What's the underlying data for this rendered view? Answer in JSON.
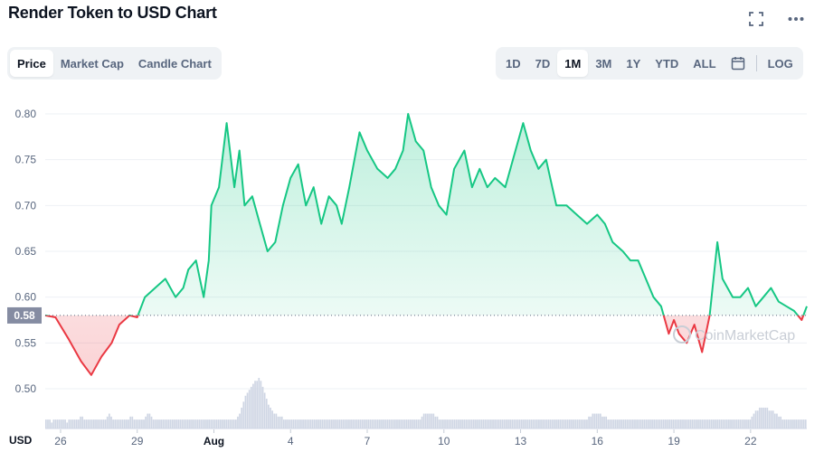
{
  "title": "Render Token to USD Chart",
  "top_icons": [
    "fullscreen-icon",
    "more-icon"
  ],
  "chart_types": [
    {
      "label": "Price",
      "active": true
    },
    {
      "label": "Market Cap",
      "active": false
    },
    {
      "label": "Candle Chart",
      "active": false
    }
  ],
  "ranges": [
    {
      "label": "1D",
      "active": false
    },
    {
      "label": "7D",
      "active": false
    },
    {
      "label": "1M",
      "active": true
    },
    {
      "label": "3M",
      "active": false
    },
    {
      "label": "1Y",
      "active": false
    },
    {
      "label": "YTD",
      "active": false
    },
    {
      "label": "ALL",
      "active": false
    }
  ],
  "calendar_icon": "calendar-icon",
  "log_label": "LOG",
  "watermark": "CoinMarketCap",
  "colors": {
    "up": "#16c784",
    "down": "#ea3943",
    "volume": "#cfd6e4",
    "grid": "#eef0f4",
    "baseline_tag": "#858ca2"
  },
  "chart_data": {
    "type": "area",
    "title": "",
    "xlabel": "",
    "ylabel": "",
    "currency_label": "USD",
    "baseline_label": "0.58",
    "baseline": 0.58,
    "ylim": [
      0.47,
      0.82
    ],
    "y_ticks": [
      "0.80",
      "0.75",
      "0.70",
      "0.65",
      "0.60",
      "0.55",
      "0.50"
    ],
    "x_ticks": [
      {
        "label": "26",
        "day": 26,
        "bold": false
      },
      {
        "label": "29",
        "day": 29,
        "bold": false
      },
      {
        "label": "Aug",
        "day": 32,
        "bold": true
      },
      {
        "label": "4",
        "day": 35,
        "bold": false
      },
      {
        "label": "7",
        "day": 38,
        "bold": false
      },
      {
        "label": "10",
        "day": 41,
        "bold": false
      },
      {
        "label": "13",
        "day": 44,
        "bold": false
      },
      {
        "label": "16",
        "day": 47,
        "bold": false
      },
      {
        "label": "19",
        "day": 50,
        "bold": false
      },
      {
        "label": "22",
        "day": 53,
        "bold": false
      }
    ],
    "x_domain": [
      25.4,
      55.2
    ],
    "series": [
      {
        "x": [
          25.4,
          25.8,
          26.3,
          26.8,
          27.2,
          27.6,
          28.0,
          28.3,
          28.7,
          29.0,
          29.3,
          29.7,
          30.1,
          30.5,
          30.8,
          31.0,
          31.3,
          31.6,
          31.8,
          31.9,
          32.2,
          32.5,
          32.8,
          33.0,
          33.2,
          33.5,
          33.8,
          34.1,
          34.4,
          34.7,
          35.0,
          35.3,
          35.6,
          35.9,
          36.2,
          36.5,
          36.8,
          37.0,
          37.3,
          37.7,
          38.0,
          38.4,
          38.8,
          39.1,
          39.4,
          39.6,
          39.9,
          40.2,
          40.5,
          40.8,
          41.1,
          41.4,
          41.8,
          42.1,
          42.4,
          42.7,
          43.0,
          43.4,
          43.8,
          44.1,
          44.4,
          44.7,
          45.0,
          45.4,
          45.8,
          46.2,
          46.6,
          47.0,
          47.3,
          47.6,
          48.0,
          48.3,
          48.6,
          48.9,
          49.2,
          49.5,
          49.8,
          50.0,
          50.2,
          50.5,
          50.8,
          51.1,
          51.4,
          51.7,
          51.9,
          52.1,
          52.3,
          52.6,
          52.9,
          53.2,
          53.5,
          53.8,
          54.1,
          54.4,
          54.7,
          55.0,
          55.2
        ],
        "values": [
          0.58,
          0.578,
          0.555,
          0.53,
          0.515,
          0.535,
          0.55,
          0.57,
          0.58,
          0.578,
          0.6,
          0.61,
          0.62,
          0.6,
          0.61,
          0.63,
          0.64,
          0.6,
          0.64,
          0.7,
          0.72,
          0.79,
          0.72,
          0.76,
          0.7,
          0.71,
          0.68,
          0.65,
          0.66,
          0.7,
          0.73,
          0.745,
          0.7,
          0.72,
          0.68,
          0.71,
          0.7,
          0.68,
          0.72,
          0.78,
          0.76,
          0.74,
          0.73,
          0.74,
          0.76,
          0.8,
          0.77,
          0.76,
          0.72,
          0.7,
          0.69,
          0.74,
          0.76,
          0.72,
          0.74,
          0.72,
          0.73,
          0.72,
          0.76,
          0.79,
          0.76,
          0.74,
          0.75,
          0.7,
          0.7,
          0.69,
          0.68,
          0.69,
          0.68,
          0.66,
          0.65,
          0.64,
          0.64,
          0.62,
          0.6,
          0.59,
          0.56,
          0.575,
          0.56,
          0.55,
          0.57,
          0.54,
          0.58,
          0.66,
          0.62,
          0.61,
          0.6,
          0.6,
          0.61,
          0.59,
          0.6,
          0.61,
          0.595,
          0.59,
          0.585,
          0.575,
          0.59
        ]
      }
    ],
    "volume": [
      3,
      3,
      3,
      2,
      3,
      3,
      3,
      3,
      3,
      3,
      3,
      2,
      3,
      3,
      3,
      3,
      3,
      3,
      4,
      4,
      3,
      3,
      3,
      3,
      3,
      3,
      3,
      3,
      3,
      3,
      3,
      3,
      4,
      5,
      4,
      3,
      3,
      3,
      3,
      3,
      3,
      3,
      3,
      3,
      4,
      4,
      3,
      3,
      3,
      3,
      3,
      3,
      4,
      5,
      5,
      4,
      3,
      3,
      3,
      3,
      3,
      3,
      3,
      3,
      3,
      3,
      3,
      3,
      3,
      3,
      3,
      3,
      3,
      3,
      3,
      3,
      3,
      3,
      3,
      3,
      3,
      3,
      3,
      3,
      3,
      3,
      3,
      3,
      3,
      3,
      3,
      3,
      3,
      3,
      3,
      3,
      3,
      3,
      3,
      3,
      4,
      5,
      7,
      9,
      11,
      12,
      13,
      14,
      15,
      16,
      16,
      17,
      16,
      14,
      12,
      10,
      8,
      7,
      6,
      5,
      5,
      4,
      4,
      4,
      3,
      3,
      3,
      3,
      3,
      3,
      3,
      3,
      3,
      3,
      3,
      3,
      3,
      3,
      3,
      3,
      3,
      3,
      3,
      3,
      3,
      3,
      3,
      3,
      3,
      3,
      3,
      3,
      3,
      3,
      3,
      3,
      3,
      3,
      3,
      3,
      3,
      3,
      3,
      3,
      3,
      3,
      3,
      3,
      3,
      3,
      3,
      3,
      3,
      3,
      3,
      3,
      3,
      3,
      3,
      3,
      3,
      3,
      3,
      3,
      3,
      3,
      3,
      3,
      3,
      3,
      3,
      3,
      3,
      3,
      3,
      3,
      4,
      5,
      5,
      5,
      5,
      5,
      5,
      4,
      4,
      3,
      3,
      3,
      3,
      3,
      3,
      3,
      3,
      3,
      3,
      3,
      3,
      3,
      3,
      3,
      3,
      3,
      3,
      3,
      3,
      3,
      3,
      3,
      3,
      3,
      3,
      3,
      3,
      3,
      3,
      3,
      3,
      3,
      3,
      3,
      3,
      3,
      3,
      3,
      3,
      3,
      3,
      3,
      3,
      3,
      3,
      3,
      3,
      3,
      3,
      3,
      3,
      3,
      3,
      3,
      3,
      3,
      3,
      3,
      3,
      3,
      3,
      3,
      3,
      3,
      3,
      3,
      3,
      3,
      3,
      3,
      3,
      3,
      3,
      3,
      3,
      3,
      3,
      4,
      4,
      5,
      5,
      5,
      5,
      5,
      4,
      4,
      4,
      3,
      3,
      3,
      3,
      3,
      3,
      3,
      3,
      3,
      3,
      3,
      3,
      3,
      3,
      3,
      3,
      3,
      3,
      3,
      3,
      3,
      3,
      3,
      3,
      3,
      3,
      3,
      3,
      3,
      3,
      3,
      3,
      3,
      3,
      3,
      3,
      3,
      3,
      3,
      3,
      3,
      3,
      3,
      3,
      3,
      3,
      3,
      3,
      3,
      3,
      3,
      3,
      3,
      3,
      3,
      3,
      3,
      3,
      3,
      3,
      3,
      3,
      3,
      3,
      3,
      3,
      3,
      3,
      3,
      3,
      3,
      3,
      3,
      3,
      3,
      4,
      5,
      6,
      6,
      7,
      7,
      7,
      7,
      7,
      6,
      6,
      6,
      5,
      5,
      4,
      4,
      3,
      3,
      3,
      3,
      3,
      3,
      3,
      3,
      3,
      3,
      3,
      3,
      3
    ]
  }
}
